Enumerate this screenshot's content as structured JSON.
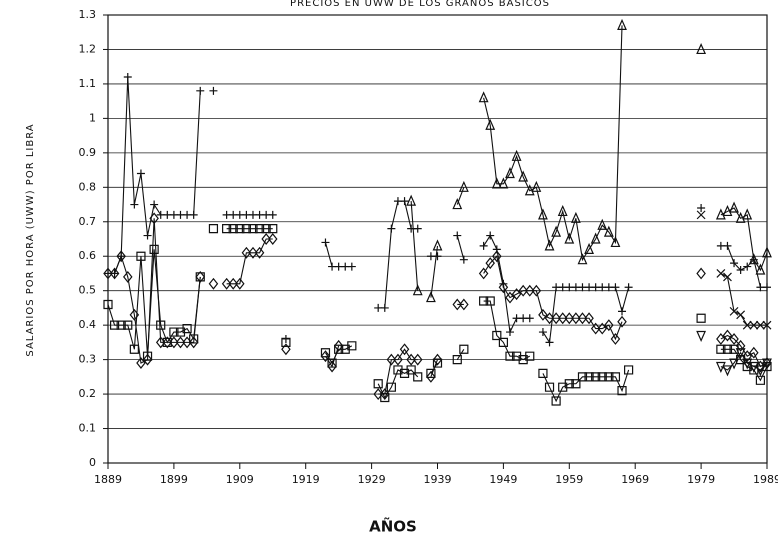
{
  "chart_data": {
    "type": "line",
    "title": "PRECIOS EN UWW DE LOS GRANOS BASICOS",
    "y_label": "SALARIOS POR HORA (UWW) POR LIBRA",
    "x_label": "AÑOS",
    "xlim": [
      1889,
      1989
    ],
    "xticks": [
      1889,
      1899,
      1909,
      1919,
      1929,
      1939,
      1949,
      1959,
      1969,
      1979,
      1989
    ],
    "ylim": [
      0,
      1.3
    ],
    "yticks": [
      0,
      0.1,
      0.2,
      0.3,
      0.4,
      0.5,
      0.6,
      0.7,
      0.8,
      0.9,
      1,
      1.1,
      1.2,
      1.3
    ],
    "grid": true,
    "series": [
      {
        "marker": "square",
        "color": "#111111",
        "x": [
          1889,
          1890,
          1891,
          1892,
          1893,
          1894,
          1895,
          1896,
          1897,
          1898,
          1899,
          1900,
          1901,
          1902,
          1903,
          1904,
          1905,
          1906,
          1907,
          1908,
          1909,
          1910,
          1911,
          1912,
          1913,
          1914,
          1915,
          1916,
          1917,
          1922,
          1923,
          1924,
          1925,
          1926,
          1927,
          1930,
          1931,
          1932,
          1933,
          1934,
          1935,
          1936,
          1937,
          1938,
          1939,
          1940,
          1942,
          1943,
          1944,
          1946,
          1947,
          1948,
          1949,
          1950,
          1951,
          1952,
          1953,
          1954,
          1955,
          1956,
          1957,
          1958,
          1959,
          1960,
          1961,
          1962,
          1963,
          1964,
          1965,
          1966,
          1967,
          1968,
          1969,
          1979,
          1980,
          1982,
          1983,
          1984,
          1985,
          1986,
          1987,
          1988,
          1989
        ],
        "values": [
          0.46,
          0.4,
          0.4,
          0.4,
          0.33,
          0.6,
          0.31,
          0.62,
          0.4,
          0.35,
          0.38,
          0.38,
          0.39,
          0.36,
          0.54,
          null,
          0.68,
          null,
          0.68,
          0.68,
          0.68,
          0.68,
          0.68,
          0.68,
          0.68,
          0.68,
          null,
          0.35,
          null,
          0.32,
          0.29,
          0.33,
          0.33,
          0.34,
          null,
          0.23,
          0.19,
          0.22,
          0.27,
          0.26,
          0.27,
          0.25,
          null,
          0.26,
          0.29,
          null,
          0.3,
          0.33,
          null,
          0.47,
          0.47,
          0.37,
          0.35,
          0.31,
          0.31,
          0.3,
          0.31,
          null,
          0.26,
          0.22,
          0.18,
          0.22,
          0.23,
          0.23,
          0.25,
          0.25,
          0.25,
          0.25,
          0.25,
          0.25,
          0.21,
          0.27,
          null,
          0.42,
          null,
          0.33,
          0.33,
          0.33,
          0.3,
          0.28,
          0.27,
          0.24,
          0.28
        ]
      },
      {
        "marker": "diamond",
        "color": "#111111",
        "x": [
          1889,
          1890,
          1891,
          1892,
          1893,
          1894,
          1895,
          1896,
          1897,
          1898,
          1899,
          1900,
          1901,
          1902,
          1903,
          1904,
          1905,
          1906,
          1907,
          1908,
          1909,
          1910,
          1911,
          1912,
          1913,
          1914,
          1915,
          1916,
          1917,
          1922,
          1923,
          1924,
          1925,
          1930,
          1931,
          1932,
          1933,
          1934,
          1935,
          1936,
          1937,
          1938,
          1939,
          1940,
          1942,
          1943,
          1944,
          1946,
          1947,
          1948,
          1949,
          1950,
          1951,
          1952,
          1953,
          1954,
          1955,
          1956,
          1957,
          1958,
          1959,
          1960,
          1961,
          1962,
          1963,
          1964,
          1965,
          1966,
          1967,
          1968,
          1979,
          1980,
          1982,
          1983,
          1984,
          1985,
          1986,
          1987,
          1988,
          1989
        ],
        "values": [
          0.55,
          0.55,
          0.6,
          0.54,
          0.43,
          0.29,
          0.3,
          0.71,
          0.35,
          0.35,
          0.35,
          0.35,
          0.35,
          0.35,
          0.54,
          null,
          0.52,
          null,
          0.52,
          0.52,
          0.52,
          0.61,
          0.61,
          0.61,
          0.65,
          0.65,
          null,
          0.33,
          null,
          0.31,
          0.28,
          0.34,
          null,
          0.2,
          0.2,
          0.3,
          0.3,
          0.33,
          0.3,
          0.3,
          null,
          0.25,
          0.3,
          null,
          0.46,
          0.46,
          null,
          0.55,
          0.58,
          0.6,
          0.51,
          0.48,
          0.49,
          0.5,
          0.5,
          0.5,
          0.43,
          0.42,
          0.42,
          0.42,
          0.42,
          0.42,
          0.42,
          0.42,
          0.39,
          0.39,
          0.4,
          0.36,
          0.41,
          null,
          0.55,
          null,
          0.36,
          0.37,
          0.36,
          0.34,
          0.31,
          0.32,
          0.28,
          0.29
        ]
      },
      {
        "marker": "plus",
        "color": "#111111",
        "x": [
          1889,
          1890,
          1891,
          1892,
          1893,
          1894,
          1895,
          1896,
          1897,
          1898,
          1899,
          1900,
          1901,
          1902,
          1903,
          1904,
          1905,
          1906,
          1907,
          1908,
          1909,
          1910,
          1911,
          1912,
          1913,
          1914,
          1915,
          1916,
          1917,
          1922,
          1923,
          1924,
          1925,
          1926,
          1927,
          1930,
          1931,
          1932,
          1933,
          1934,
          1935,
          1936,
          1937,
          1938,
          1939,
          1940,
          1942,
          1943,
          1944,
          1946,
          1947,
          1948,
          1949,
          1950,
          1951,
          1952,
          1953,
          1954,
          1955,
          1956,
          1957,
          1958,
          1959,
          1960,
          1961,
          1962,
          1963,
          1964,
          1965,
          1966,
          1967,
          1968,
          1969,
          1979,
          1980,
          1982,
          1983,
          1984,
          1985,
          1986,
          1987,
          1988,
          1989
        ],
        "values": [
          0.55,
          0.55,
          0.6,
          1.12,
          0.75,
          0.84,
          0.66,
          0.75,
          0.72,
          0.72,
          0.72,
          0.72,
          0.72,
          0.72,
          1.08,
          null,
          1.08,
          null,
          0.72,
          0.72,
          0.72,
          0.72,
          0.72,
          0.72,
          0.72,
          0.72,
          null,
          0.36,
          null,
          0.64,
          0.57,
          0.57,
          0.57,
          0.57,
          null,
          0.45,
          0.45,
          0.68,
          0.76,
          0.76,
          0.68,
          0.68,
          null,
          0.6,
          0.6,
          null,
          0.66,
          0.59,
          null,
          0.63,
          0.66,
          0.62,
          0.52,
          0.38,
          0.42,
          0.42,
          0.42,
          null,
          0.38,
          0.35,
          0.51,
          0.51,
          0.51,
          0.51,
          0.51,
          0.51,
          0.51,
          0.51,
          0.51,
          0.51,
          0.44,
          0.51,
          null,
          0.74,
          null,
          0.63,
          0.63,
          0.58,
          0.56,
          0.57,
          0.59,
          0.51,
          0.51
        ]
      },
      {
        "marker": "triangle",
        "color": "#111111",
        "x": [
          1935,
          1936,
          1937,
          1938,
          1939,
          1940,
          1942,
          1943,
          1944,
          1946,
          1947,
          1948,
          1949,
          1950,
          1951,
          1952,
          1953,
          1954,
          1955,
          1956,
          1957,
          1958,
          1959,
          1960,
          1961,
          1962,
          1963,
          1964,
          1965,
          1966,
          1967,
          1968,
          1979,
          1980,
          1982,
          1983,
          1984,
          1985,
          1986,
          1987,
          1988,
          1989
        ],
        "values": [
          0.76,
          0.5,
          null,
          0.48,
          0.63,
          null,
          0.75,
          0.8,
          null,
          1.06,
          0.98,
          0.81,
          0.81,
          0.84,
          0.89,
          0.83,
          0.79,
          0.8,
          0.72,
          0.63,
          0.67,
          0.73,
          0.65,
          0.71,
          0.59,
          0.62,
          0.65,
          0.69,
          0.67,
          0.64,
          1.27,
          null,
          1.2,
          null,
          0.72,
          0.73,
          0.74,
          0.71,
          0.72,
          0.59,
          0.56,
          0.61
        ]
      },
      {
        "marker": "x",
        "color": "#111111",
        "x": [
          1979,
          1980,
          1982,
          1983,
          1984,
          1985,
          1986,
          1987,
          1988,
          1989
        ],
        "values": [
          0.72,
          null,
          0.55,
          0.54,
          0.44,
          0.43,
          0.4,
          0.4,
          0.4,
          0.4
        ]
      },
      {
        "marker": "down-triangle",
        "color": "#111111",
        "x": [
          1979,
          1980,
          1982,
          1983,
          1984,
          1985,
          1986,
          1987,
          1988,
          1989
        ],
        "values": [
          0.37,
          null,
          0.28,
          0.27,
          0.29,
          0.32,
          0.29,
          0.28,
          0.27,
          0.29
        ]
      }
    ]
  }
}
